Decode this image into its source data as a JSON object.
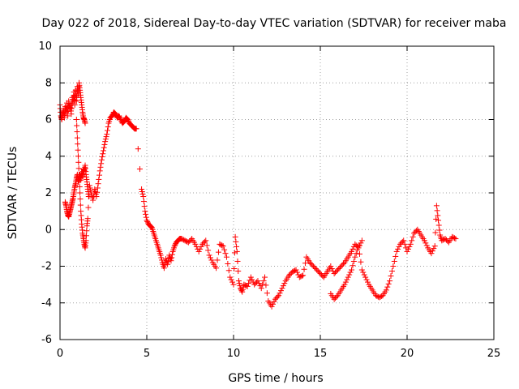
{
  "chart_data": {
    "type": "scatter",
    "title": "Day 022 of 2018, Sidereal Day-to-day VTEC variation (SDTVAR) for receiver maba",
    "xlabel": "GPS time / hours",
    "ylabel": "SDTVAR / TECUs",
    "xlim": [
      0,
      25
    ],
    "ylim": [
      -6,
      10
    ],
    "xticks": [
      0,
      5,
      10,
      15,
      20,
      25
    ],
    "yticks": [
      -6,
      -4,
      -2,
      0,
      2,
      4,
      6,
      8,
      10
    ],
    "grid": true,
    "marker": "plus",
    "color": "#ff0000",
    "series": [
      {
        "name": "SDTVAR",
        "x": [
          0.0,
          0.05,
          0.1,
          0.15,
          0.2,
          0.25,
          0.3,
          0.35,
          0.4,
          0.45,
          0.5,
          0.55,
          0.6,
          0.65,
          0.7,
          0.75,
          0.8,
          0.85,
          0.9,
          0.95,
          1.0,
          1.05,
          1.1,
          1.15,
          1.2,
          1.25,
          1.3,
          1.35,
          1.4,
          1.45,
          0.3,
          0.35,
          0.4,
          0.45,
          0.5,
          0.55,
          0.6,
          0.65,
          0.7,
          0.75,
          0.8,
          0.85,
          0.9,
          0.95,
          1.0,
          1.05,
          1.1,
          1.15,
          1.2,
          1.25,
          1.3,
          1.35,
          1.4,
          1.45,
          1.5,
          1.55,
          1.6,
          1.65,
          0.95,
          1.0,
          1.05,
          1.1,
          1.15,
          1.2,
          1.25,
          1.3,
          1.35,
          1.4,
          1.45,
          1.5,
          1.55,
          1.6,
          1.7,
          1.8,
          1.9,
          2.0,
          2.1,
          2.2,
          2.3,
          2.4,
          2.5,
          2.6,
          2.7,
          2.8,
          2.9,
          3.0,
          3.1,
          3.2,
          3.3,
          3.4,
          3.5,
          3.6,
          3.7,
          3.8,
          3.9,
          4.0,
          4.1,
          4.2,
          4.3,
          4.4,
          4.7,
          4.8,
          4.9,
          5.0,
          5.1,
          5.2,
          5.3,
          5.4,
          5.5,
          5.6,
          5.7,
          5.8,
          5.9,
          6.0,
          6.1,
          6.2,
          6.3,
          6.4,
          6.5,
          6.6,
          6.7,
          6.8,
          6.9,
          7.0,
          7.2,
          7.4,
          7.6,
          7.8,
          8.0,
          8.2,
          8.4,
          8.6,
          8.8,
          9.0,
          9.2,
          9.4,
          9.6,
          9.8,
          10.0,
          10.1,
          10.2,
          10.3,
          10.4,
          10.5,
          10.6,
          10.8,
          11.0,
          11.2,
          11.4,
          11.6,
          11.8,
          12.0,
          12.2,
          12.4,
          12.6,
          12.8,
          13.0,
          13.2,
          13.4,
          13.6,
          13.8,
          14.0,
          14.2,
          14.4,
          14.6,
          14.8,
          15.0,
          15.2,
          15.4,
          15.6,
          15.8,
          16.0,
          16.2,
          16.4,
          16.6,
          16.8,
          17.0,
          17.2,
          17.4,
          15.6,
          15.8,
          16.0,
          16.2,
          16.4,
          16.6,
          16.8,
          17.0,
          17.2,
          17.4,
          17.6,
          17.8,
          18.0,
          18.2,
          18.4,
          18.6,
          18.8,
          19.0,
          19.2,
          19.4,
          19.6,
          19.8,
          20.0,
          20.2,
          20.4,
          20.6,
          20.8,
          21.0,
          21.2,
          21.4,
          21.6,
          21.7,
          21.8,
          21.9,
          22.0,
          22.2,
          22.4,
          22.6,
          22.8
        ],
        "y": [
          6.8,
          6.2,
          6.0,
          6.3,
          6.5,
          6.1,
          6.7,
          6.4,
          6.9,
          6.2,
          7.0,
          6.6,
          6.8,
          6.3,
          7.2,
          6.9,
          7.5,
          6.8,
          7.6,
          7.0,
          7.8,
          7.4,
          8.0,
          7.6,
          7.2,
          6.8,
          6.4,
          6.1,
          6.0,
          5.8,
          1.5,
          1.3,
          1.0,
          0.8,
          0.7,
          0.9,
          1.1,
          1.3,
          1.5,
          1.7,
          2.0,
          2.3,
          2.5,
          2.8,
          3.0,
          2.6,
          2.8,
          3.0,
          2.7,
          3.1,
          2.9,
          3.3,
          3.2,
          3.5,
          3.0,
          2.6,
          2.2,
          1.8,
          6.0,
          5.0,
          4.0,
          3.0,
          2.0,
          1.0,
          0.3,
          -0.2,
          -0.5,
          -0.8,
          -1.0,
          -0.6,
          0.2,
          0.6,
          2.4,
          2.0,
          1.6,
          2.2,
          1.8,
          2.5,
          3.2,
          3.8,
          4.3,
          4.8,
          5.2,
          5.8,
          6.1,
          6.2,
          6.4,
          6.3,
          6.1,
          6.2,
          6.0,
          5.8,
          5.9,
          6.1,
          6.0,
          5.8,
          5.7,
          5.6,
          5.5,
          5.5,
          2.2,
          1.8,
          1.0,
          0.5,
          0.3,
          0.2,
          0.1,
          -0.2,
          -0.5,
          -0.8,
          -1.1,
          -1.4,
          -1.8,
          -2.1,
          -1.6,
          -1.9,
          -1.4,
          -1.7,
          -1.2,
          -0.9,
          -0.7,
          -0.6,
          -0.5,
          -0.5,
          -0.6,
          -0.7,
          -0.5,
          -0.8,
          -1.2,
          -0.8,
          -0.6,
          -1.4,
          -1.8,
          -2.1,
          -0.8,
          -0.9,
          -1.5,
          -2.6,
          -3.0,
          -0.4,
          -1.2,
          -2.8,
          -3.2,
          -3.4,
          -3.0,
          -3.1,
          -2.6,
          -3.0,
          -2.8,
          -3.2,
          -2.6,
          -3.9,
          -4.2,
          -3.8,
          -3.6,
          -3.2,
          -2.8,
          -2.5,
          -2.3,
          -2.2,
          -2.6,
          -2.5,
          -1.5,
          -1.8,
          -2.0,
          -2.2,
          -2.4,
          -2.6,
          -2.3,
          -2.0,
          -2.4,
          -2.2,
          -2.0,
          -1.8,
          -1.5,
          -1.2,
          -0.8,
          -1.0,
          -0.6,
          -3.5,
          -3.8,
          -3.6,
          -3.3,
          -3.0,
          -2.6,
          -2.2,
          -1.5,
          -0.9,
          -2.2,
          -2.6,
          -3.0,
          -3.3,
          -3.6,
          -3.7,
          -3.6,
          -3.3,
          -2.8,
          -2.0,
          -1.2,
          -0.8,
          -0.6,
          -1.2,
          -0.8,
          -0.2,
          0.0,
          -0.3,
          -0.6,
          -1.0,
          -1.3,
          -0.9,
          1.3,
          0.5,
          -0.3,
          -0.6,
          -0.5,
          -0.7,
          -0.4,
          -0.5
        ]
      }
    ]
  }
}
